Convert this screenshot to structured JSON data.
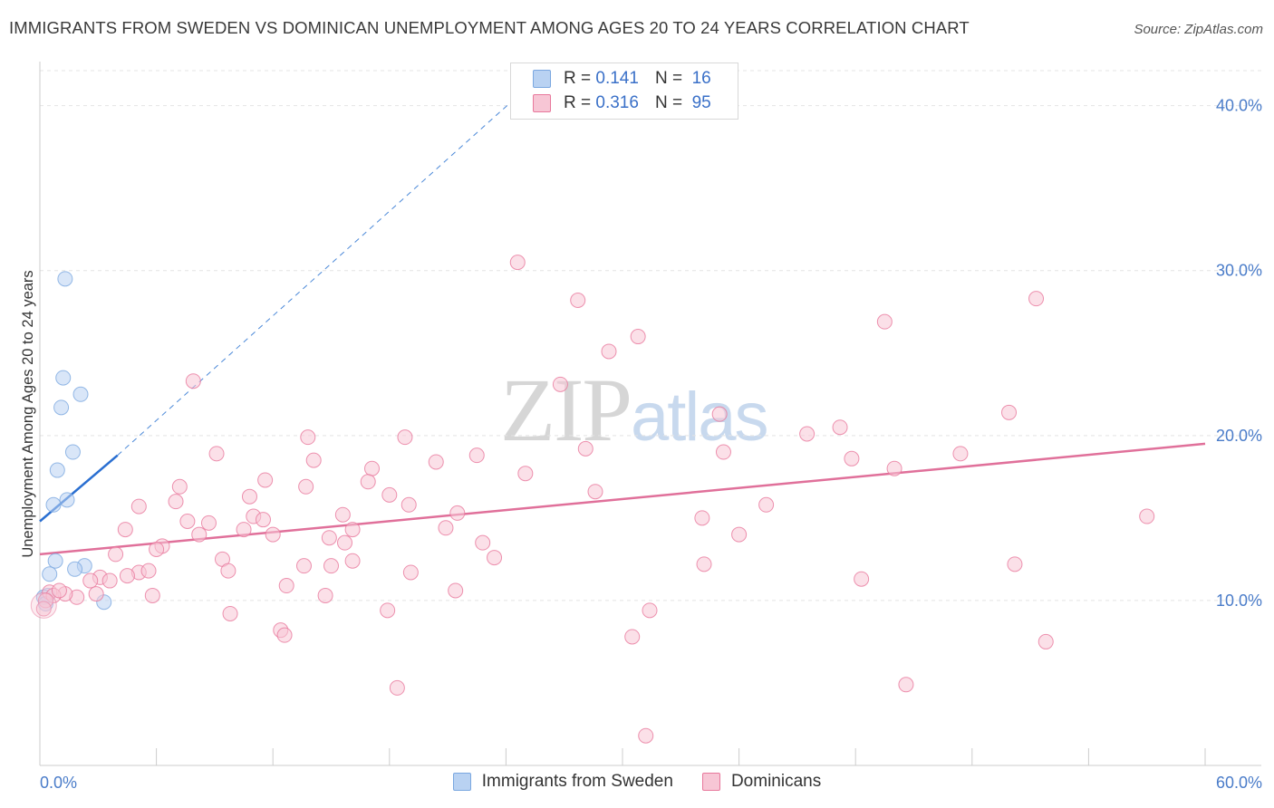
{
  "chart_data": {
    "type": "scatter",
    "title": "IMMIGRANTS FROM SWEDEN VS DOMINICAN UNEMPLOYMENT AMONG AGES 20 TO 24 YEARS CORRELATION CHART",
    "source": "Source: ZipAtlas.com",
    "ylabel": "Unemployment Among Ages 20 to 24 years",
    "xlabel": "",
    "xlim": [
      0,
      60
    ],
    "ylim": [
      0,
      43
    ],
    "x_tick_labels": [
      "0.0%",
      "60.0%"
    ],
    "y_ticks": [
      10,
      20,
      30,
      40
    ],
    "y_tick_labels": [
      "10.0%",
      "20.0%",
      "30.0%",
      "40.0%"
    ],
    "grid": true,
    "watermark": {
      "zip": "ZIP",
      "atlas": "atlas"
    },
    "legend": {
      "rows": [
        {
          "r_label": "R =",
          "r_value": "0.141",
          "n_label": "N =",
          "n_value": "16"
        },
        {
          "r_label": "R =",
          "r_value": "0.316",
          "n_label": "N =",
          "n_value": "95"
        }
      ]
    },
    "series": [
      {
        "name": "Immigrants from Sweden",
        "color": "#7aa7e0",
        "fill": "#b9d2f2",
        "trend": {
          "x0": 0,
          "y0": 14.8,
          "x1": 4.0,
          "y1": 18.8,
          "dashed_to_x": 25,
          "dashed_to_y": 41
        },
        "points": [
          [
            1.3,
            29.5
          ],
          [
            1.2,
            23.5
          ],
          [
            2.1,
            22.5
          ],
          [
            1.1,
            21.7
          ],
          [
            1.7,
            19.0
          ],
          [
            0.9,
            17.9
          ],
          [
            1.4,
            16.1
          ],
          [
            0.7,
            15.8
          ],
          [
            0.8,
            12.4
          ],
          [
            2.3,
            12.1
          ],
          [
            1.8,
            11.9
          ],
          [
            0.5,
            11.6
          ],
          [
            0.4,
            10.3
          ],
          [
            0.2,
            10.2
          ],
          [
            3.3,
            9.9
          ],
          [
            0.3,
            9.8
          ]
        ]
      },
      {
        "name": "Dominicans",
        "color": "#e8789c",
        "fill": "#f7c6d5",
        "trend": {
          "x0": 0,
          "y0": 12.8,
          "x1": 60,
          "y1": 19.5
        },
        "points": [
          [
            24.6,
            30.5
          ],
          [
            27.7,
            28.2
          ],
          [
            51.3,
            28.3
          ],
          [
            43.5,
            26.9
          ],
          [
            30.8,
            26.0
          ],
          [
            29.3,
            25.1
          ],
          [
            7.9,
            23.3
          ],
          [
            26.8,
            23.1
          ],
          [
            35.0,
            21.3
          ],
          [
            49.9,
            21.4
          ],
          [
            41.2,
            20.5
          ],
          [
            39.5,
            20.1
          ],
          [
            13.8,
            19.9
          ],
          [
            18.8,
            19.9
          ],
          [
            9.1,
            18.9
          ],
          [
            22.5,
            18.8
          ],
          [
            28.1,
            19.2
          ],
          [
            35.2,
            19.0
          ],
          [
            47.4,
            18.9
          ],
          [
            14.1,
            18.5
          ],
          [
            20.4,
            18.4
          ],
          [
            41.8,
            18.6
          ],
          [
            17.1,
            18.0
          ],
          [
            25.0,
            17.7
          ],
          [
            44.0,
            18.0
          ],
          [
            11.6,
            17.3
          ],
          [
            16.9,
            17.2
          ],
          [
            7.2,
            16.9
          ],
          [
            13.7,
            16.9
          ],
          [
            10.8,
            16.3
          ],
          [
            18.0,
            16.4
          ],
          [
            28.6,
            16.6
          ],
          [
            37.4,
            15.8
          ],
          [
            7.0,
            16.0
          ],
          [
            5.1,
            15.7
          ],
          [
            19.0,
            15.8
          ],
          [
            11.0,
            15.1
          ],
          [
            11.5,
            14.9
          ],
          [
            15.6,
            15.2
          ],
          [
            21.5,
            15.3
          ],
          [
            34.1,
            15.0
          ],
          [
            57.0,
            15.1
          ],
          [
            7.6,
            14.8
          ],
          [
            8.7,
            14.7
          ],
          [
            4.4,
            14.3
          ],
          [
            10.5,
            14.3
          ],
          [
            16.1,
            14.3
          ],
          [
            20.9,
            14.4
          ],
          [
            12.0,
            14.0
          ],
          [
            8.2,
            14.0
          ],
          [
            14.9,
            13.8
          ],
          [
            36.0,
            14.0
          ],
          [
            6.3,
            13.3
          ],
          [
            6.0,
            13.1
          ],
          [
            15.7,
            13.5
          ],
          [
            22.8,
            13.5
          ],
          [
            3.9,
            12.8
          ],
          [
            9.4,
            12.5
          ],
          [
            16.1,
            12.4
          ],
          [
            23.4,
            12.6
          ],
          [
            34.2,
            12.2
          ],
          [
            50.2,
            12.2
          ],
          [
            13.6,
            12.1
          ],
          [
            15.0,
            12.1
          ],
          [
            5.1,
            11.7
          ],
          [
            5.6,
            11.8
          ],
          [
            9.7,
            11.8
          ],
          [
            19.1,
            11.7
          ],
          [
            42.3,
            11.3
          ],
          [
            3.1,
            11.4
          ],
          [
            3.6,
            11.2
          ],
          [
            4.5,
            11.5
          ],
          [
            2.6,
            11.2
          ],
          [
            12.7,
            10.9
          ],
          [
            21.4,
            10.6
          ],
          [
            14.7,
            10.3
          ],
          [
            5.8,
            10.3
          ],
          [
            2.9,
            10.4
          ],
          [
            1.9,
            10.2
          ],
          [
            1.3,
            10.4
          ],
          [
            0.5,
            10.5
          ],
          [
            0.7,
            10.3
          ],
          [
            0.3,
            10.0
          ],
          [
            1.0,
            10.6
          ],
          [
            17.9,
            9.4
          ],
          [
            9.8,
            9.2
          ],
          [
            31.4,
            9.4
          ],
          [
            12.4,
            8.2
          ],
          [
            12.6,
            7.9
          ],
          [
            30.5,
            7.8
          ],
          [
            51.8,
            7.5
          ],
          [
            18.4,
            4.7
          ],
          [
            44.6,
            4.9
          ],
          [
            31.2,
            1.8
          ],
          [
            0.2,
            9.5
          ]
        ]
      }
    ]
  }
}
